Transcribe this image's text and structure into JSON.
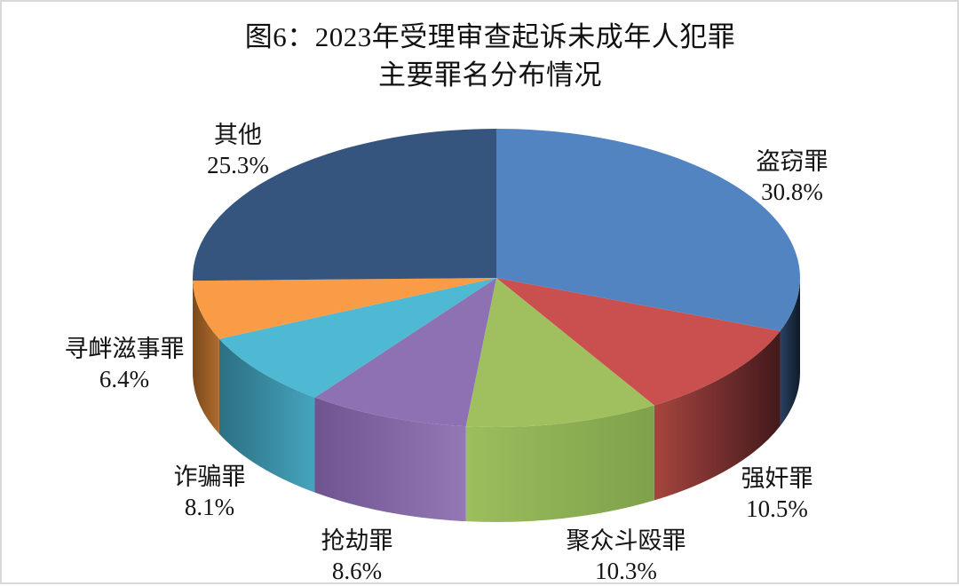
{
  "title": {
    "line1": "图6：2023年受理审查起诉未成年人犯罪",
    "line2": "主要罪名分布情况"
  },
  "chart_data": {
    "type": "pie",
    "style": "3d",
    "title": "图6：2023年受理审查起诉未成年人犯罪主要罪名分布情况",
    "unit": "%",
    "total": 100.0,
    "start_angle": "12-o-clock",
    "direction": "clockwise",
    "legend_position": "none (labels around pie)",
    "slices": [
      {
        "label": "盗窃罪",
        "value": 30.8,
        "pct_text": "30.8%",
        "color": "#5184C1",
        "side_from": "#0F1A28",
        "side_to": "#2A4263"
      },
      {
        "label": "强奸罪",
        "value": 10.5,
        "pct_text": "10.5%",
        "color": "#C9504E",
        "side_from": "#43191B",
        "side_to": "#A6453F"
      },
      {
        "label": "聚众斗殴罪",
        "value": 10.3,
        "pct_text": "10.3%",
        "color": "#A0BF5F",
        "side_from": "#7EA14B",
        "side_to": "#9CBE5D"
      },
      {
        "label": "抢劫罪",
        "value": 8.6,
        "pct_text": "8.6%",
        "color": "#8E71B3",
        "side_from": "#9478B5",
        "side_to": "#6F5490"
      },
      {
        "label": "诈骗罪",
        "value": 8.1,
        "pct_text": "8.1%",
        "color": "#4FB8D2",
        "side_from": "#45A4BD",
        "side_to": "#2C6F82"
      },
      {
        "label": "寻衅滋事罪",
        "value": 6.4,
        "pct_text": "6.4%",
        "color": "#F99C45",
        "side_from": "#B26C2B",
        "side_to": "#7A481C"
      },
      {
        "label": "其他",
        "value": 25.3,
        "pct_text": "25.3%",
        "color": "#36557E",
        "side_from": "#1F3149",
        "side_to": "#1F3149"
      }
    ]
  }
}
